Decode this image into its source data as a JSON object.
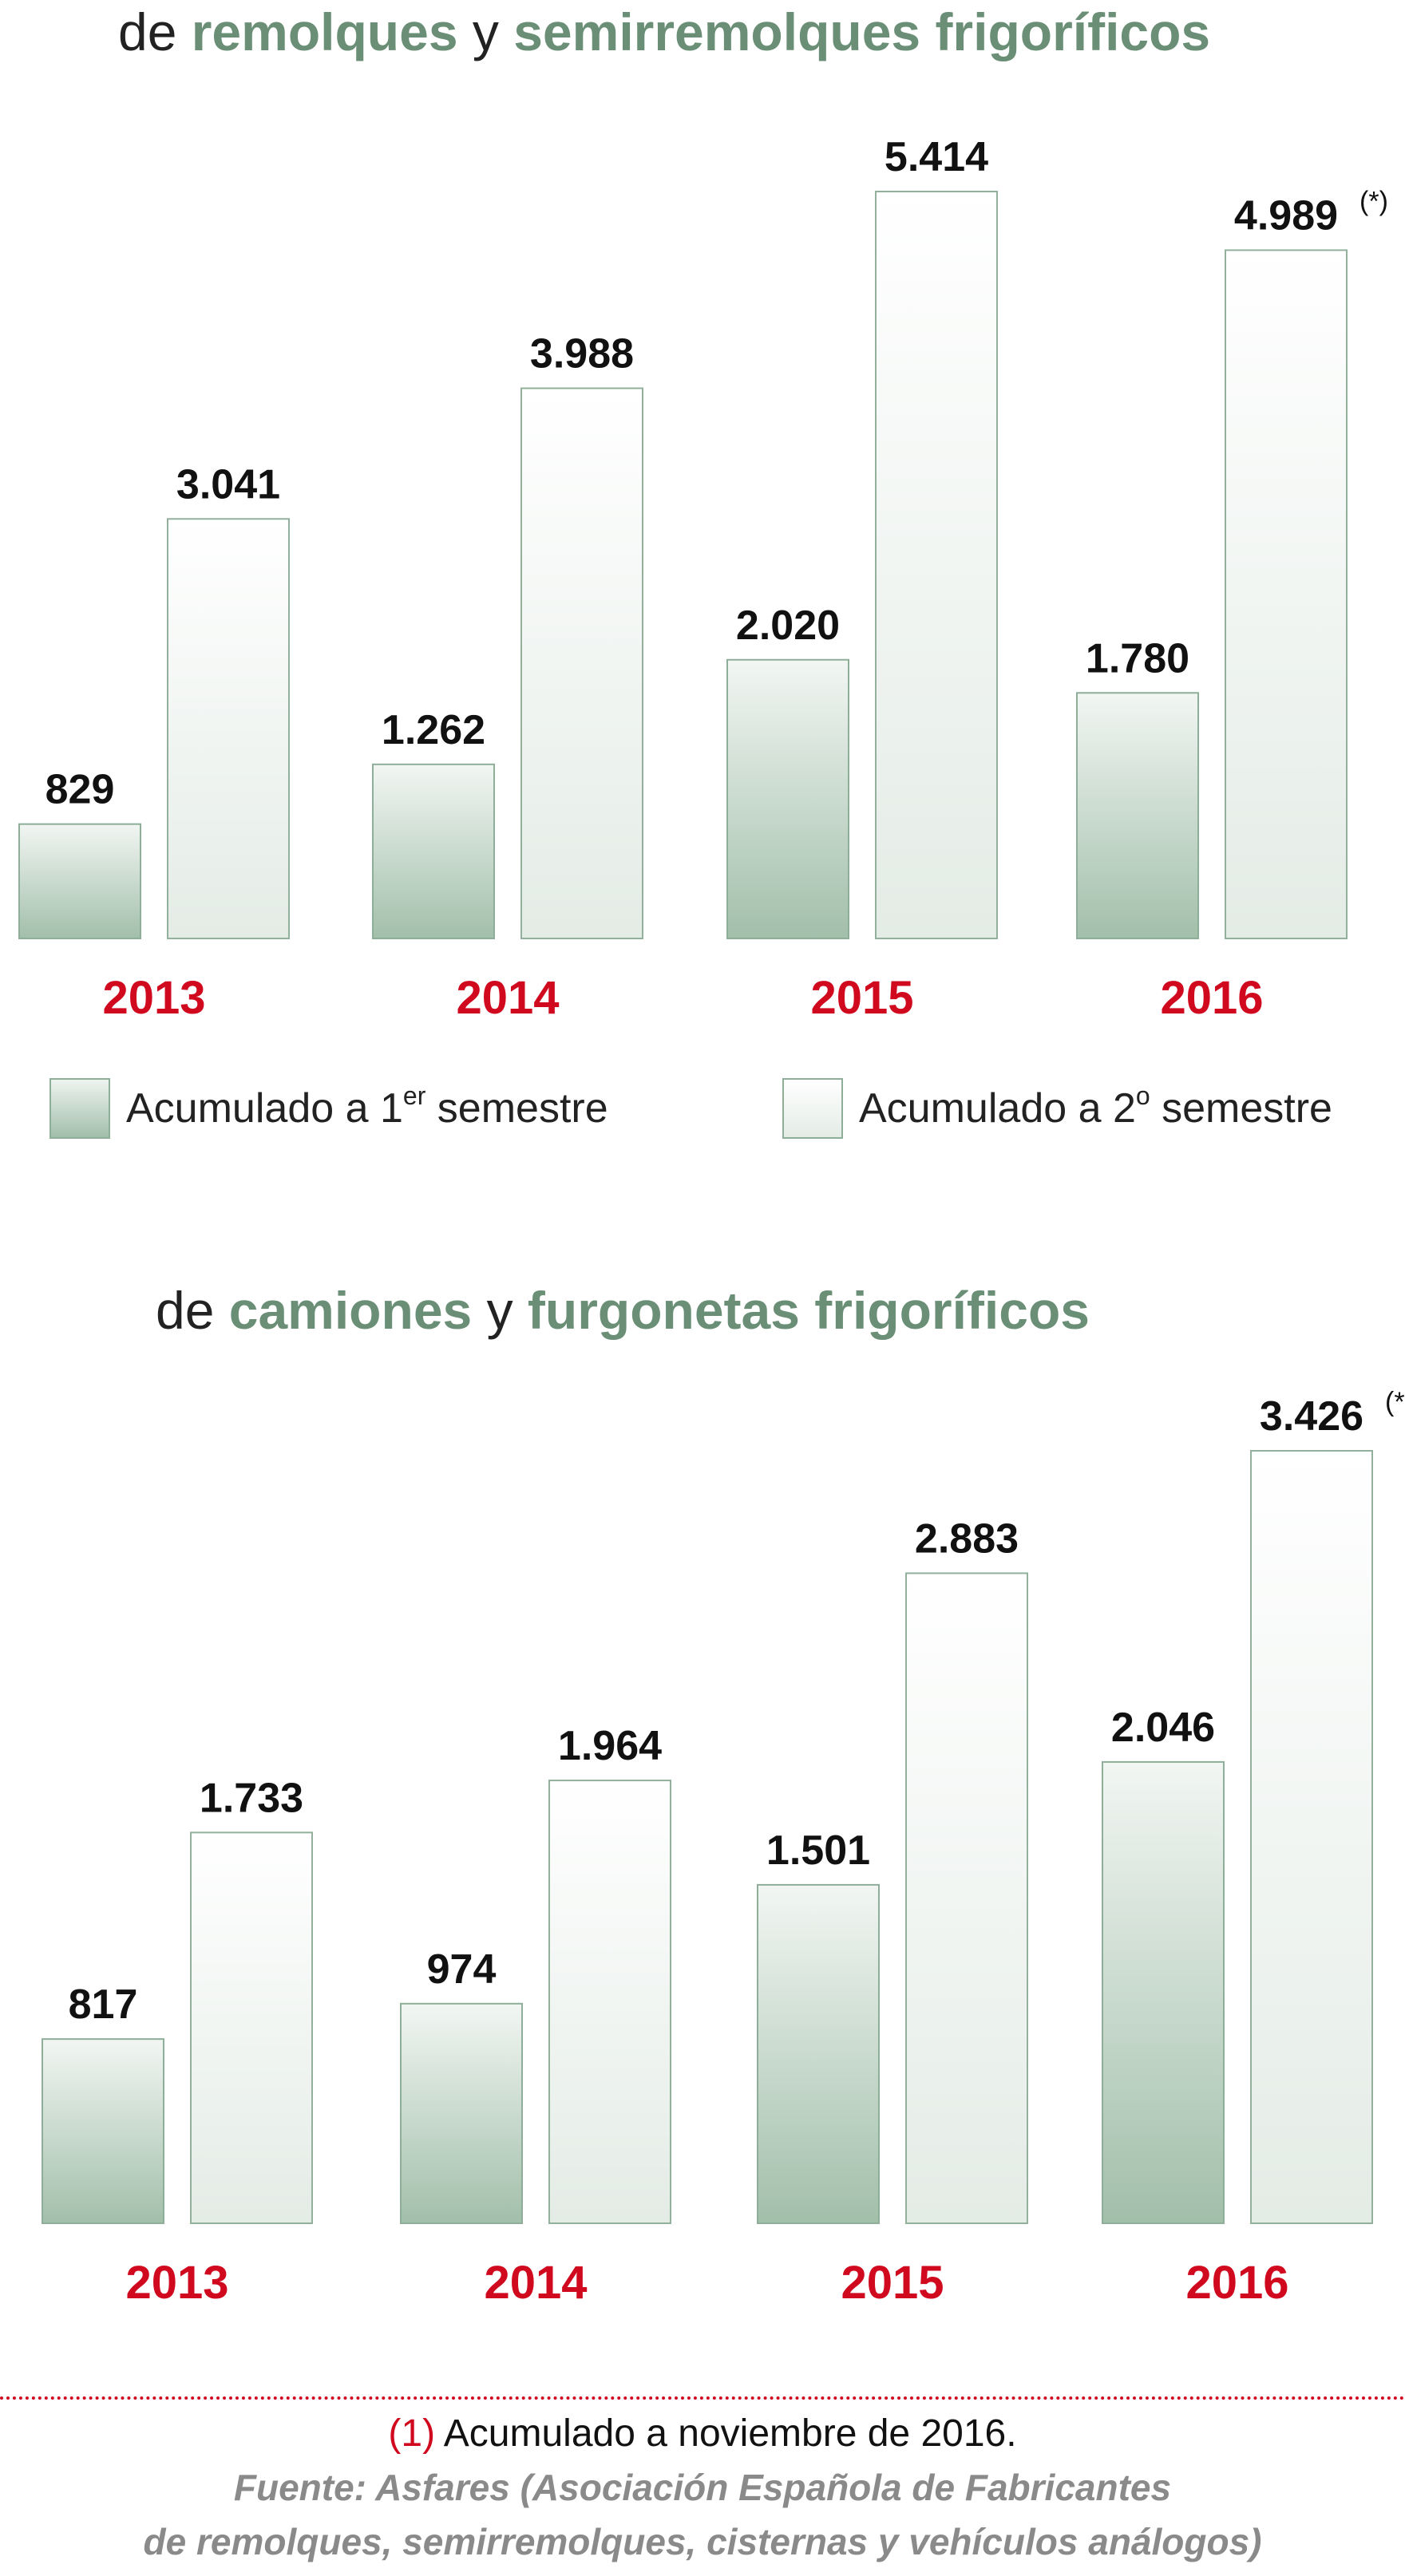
{
  "colors": {
    "title_highlight": "#6a8f76",
    "year_label": "#d0091f",
    "first_semester_bar": "#a2bfaa",
    "second_semester_bar": "#e4ece6",
    "bar_border": "#8fae99",
    "footnote_marker": "#d0091f",
    "source_text": "#8a8a8a"
  },
  "top_title": {
    "part1": "de ",
    "part2": "remolques",
    "part3": " y ",
    "part4": "semirremolques frigoríficos"
  },
  "bottom_title": {
    "part1": "de ",
    "part2": "camiones",
    "part3": " y ",
    "part4": "furgonetas frigoríficos"
  },
  "legend": {
    "first": {
      "text": "Acumulado a 1",
      "sup": "er",
      "rest": " semestre"
    },
    "second": {
      "text": "Acumulado a 2",
      "sup": "o",
      "rest": " semestre"
    }
  },
  "footnote": {
    "marker": "(1)",
    "text": " Acumulado a noviembre de 2016.",
    "source_line1": "Fuente: Asfares (Asociación Española de Fabricantes",
    "source_line2": "de remolques, semirremolques, cisternas y vehículos análogos)"
  },
  "chart_data": [
    {
      "type": "bar",
      "categories": [
        "2013",
        "2014",
        "2015",
        "2016"
      ],
      "series": [
        {
          "name": "Acumulado a 1er semestre",
          "values": [
            829,
            1262,
            2020,
            1780
          ],
          "labels": [
            "829",
            "1.262",
            "2.020",
            "1.780"
          ]
        },
        {
          "name": "Acumulado a 2o semestre",
          "values": [
            3041,
            3988,
            5414,
            4989
          ],
          "labels": [
            "3.041",
            "3.988",
            "5.414",
            "4.989"
          ]
        }
      ],
      "annotations": [
        {
          "category": "2016",
          "series": 1,
          "text": "(*)"
        }
      ],
      "title": "de remolques y semirremolques frigoríficos",
      "ylim": [
        0,
        5414
      ]
    },
    {
      "type": "bar",
      "categories": [
        "2013",
        "2014",
        "2015",
        "2016"
      ],
      "series": [
        {
          "name": "Acumulado a 1er semestre",
          "values": [
            817,
            974,
            1501,
            2046
          ],
          "labels": [
            "817",
            "974",
            "1.501",
            "2.046"
          ]
        },
        {
          "name": "Acumulado a 2o semestre",
          "values": [
            1733,
            1964,
            2883,
            3426
          ],
          "labels": [
            "1.733",
            "1.964",
            "2.883",
            "3.426"
          ]
        }
      ],
      "annotations": [
        {
          "category": "2016",
          "series": 1,
          "text": "(*)"
        }
      ],
      "title": "de camiones y furgonetas frigoríficos",
      "ylim": [
        0,
        3426
      ]
    }
  ]
}
